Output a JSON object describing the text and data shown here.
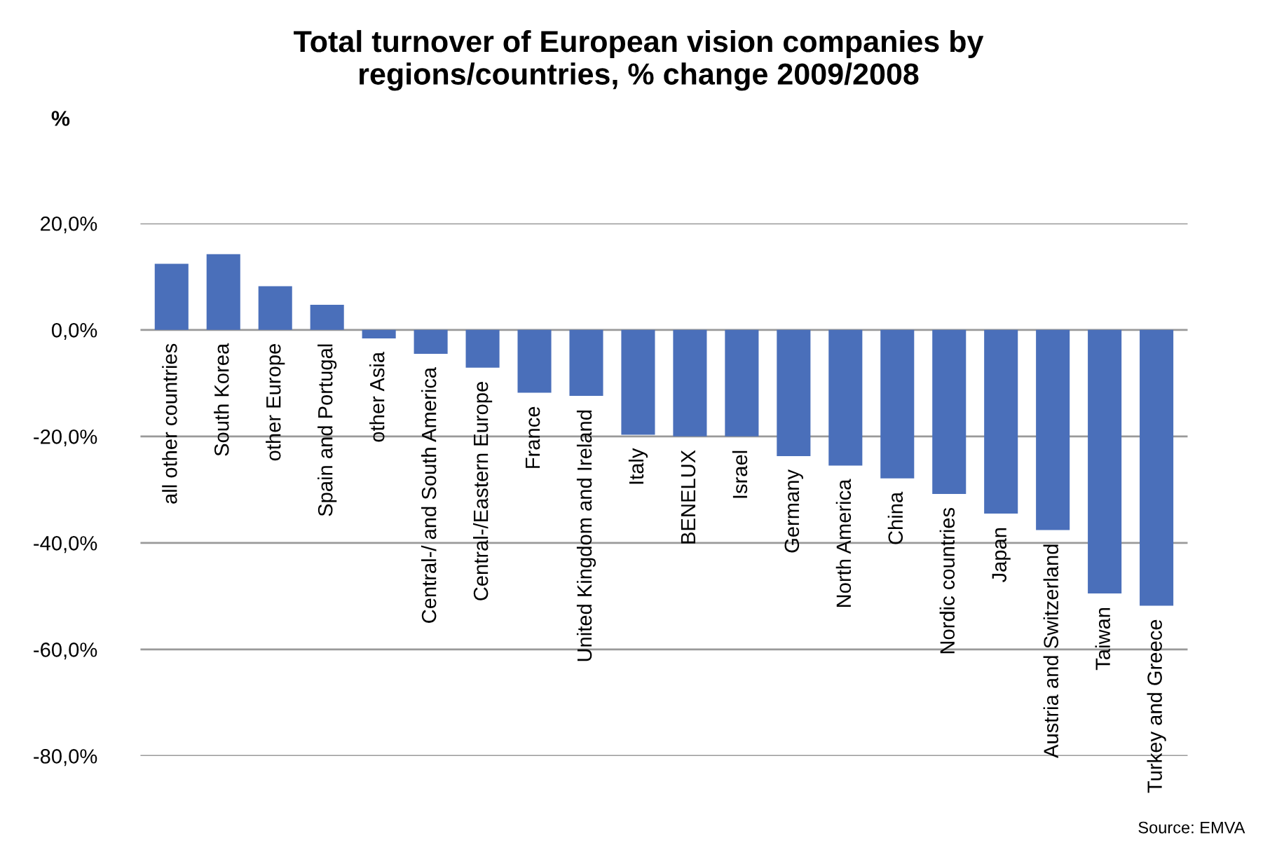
{
  "chart_data": {
    "type": "bar",
    "title": "Total turnover of European vision companies by\nregions/countries, % change 2009/2008",
    "ylabel": "%",
    "categories": [
      "all other countries",
      "South Korea",
      "other Europe",
      "Spain and Portugal",
      "other Asia",
      "Central-/ and South America",
      "Central-/Eastern Europe",
      "France",
      "United Kingdom and Ireland",
      "Italy",
      "BENELUX",
      "Israel",
      "Germany",
      "North America",
      "China",
      "Nordic countries",
      "Japan",
      "Austria and Switzerland",
      "Taiwan",
      "Turkey and Greece"
    ],
    "values": [
      12.4,
      14.2,
      8.2,
      4.7,
      -1.6,
      -4.5,
      -7.1,
      -11.8,
      -12.4,
      -19.7,
      -20.0,
      -20.0,
      -23.7,
      -25.5,
      -27.9,
      -30.8,
      -34.5,
      -37.6,
      -49.5,
      -51.8
    ],
    "color": "#4a6fba",
    "ylim": [
      -80,
      20
    ],
    "yticks": [
      {
        "value": 20,
        "label": "20,0%"
      },
      {
        "value": 0,
        "label": "0,0%"
      },
      {
        "value": -20,
        "label": "-20,0%"
      },
      {
        "value": -40,
        "label": "-40,0%"
      },
      {
        "value": -60,
        "label": "-60,0%"
      },
      {
        "value": -80,
        "label": "-80,0%"
      }
    ],
    "grid": "y",
    "annotations": [
      "Source: EMVA"
    ]
  }
}
